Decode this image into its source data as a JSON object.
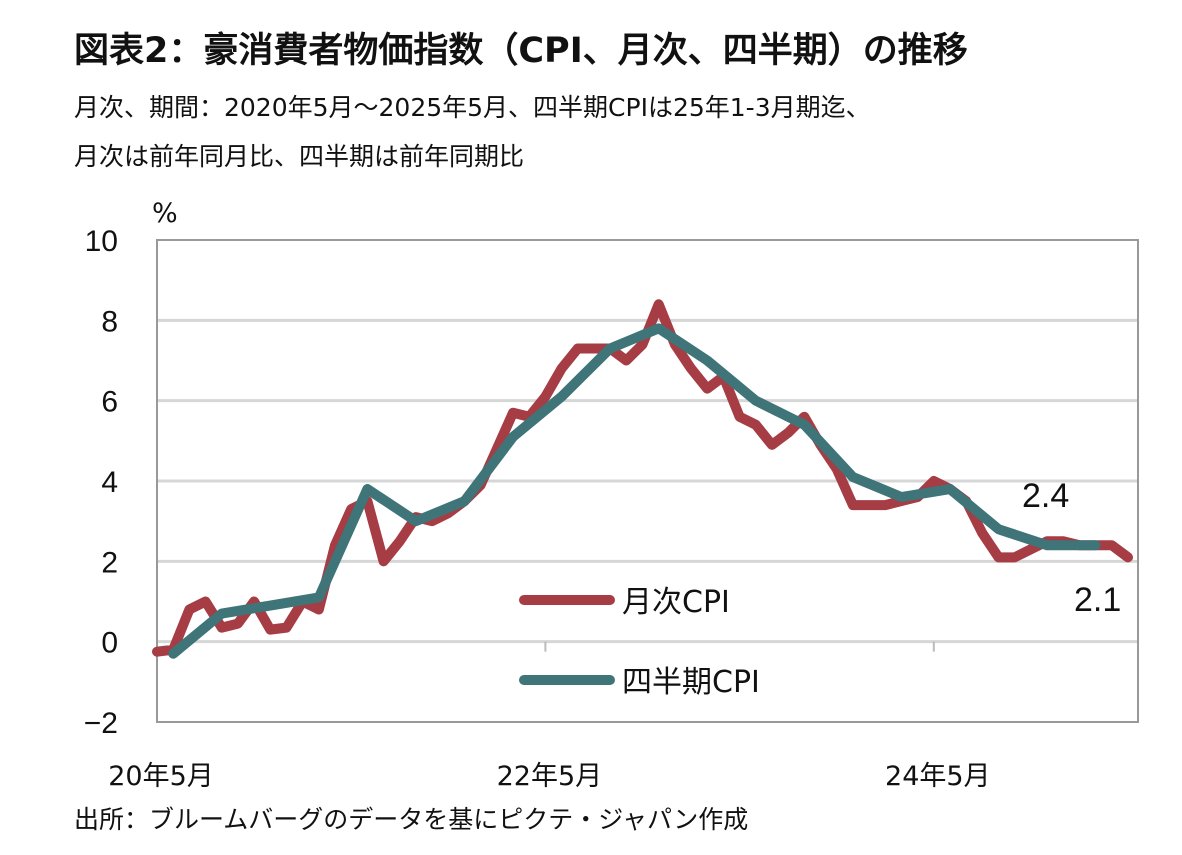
{
  "title": "図表2：豪消費者物価指数（CPI、月次、四半期）の推移",
  "subtitle_lines": [
    "月次、期間：2020年5月～2025年5月、四半期CPIは25年1-3月期迄、",
    "月次は前年同月比、四半期は前年同期比"
  ],
  "source": "出所：ブルームバーグのデータを基にピクテ・ジャパン作成",
  "chart_data": {
    "type": "line",
    "ylabel": "%",
    "ylim": [
      -2,
      10
    ],
    "yticks": [
      -2,
      0,
      2,
      4,
      6,
      8,
      10
    ],
    "ytick_labels": [
      "−2",
      "0",
      "2",
      "4",
      "6",
      "8",
      "10"
    ],
    "x_range": [
      "2020-05",
      "2025-05"
    ],
    "xtick_labels": [
      {
        "date": "2020-05",
        "label": "20年5月"
      },
      {
        "date": "2022-05",
        "label": "22年5月"
      },
      {
        "date": "2024-05",
        "label": "24年5月"
      }
    ],
    "grid": true,
    "legend_placement": "bottom-center",
    "series": [
      {
        "name": "月次CPI",
        "color": "#a63c44",
        "start": "2020-05",
        "frequency": "monthly",
        "values": [
          -0.25,
          -0.2,
          0.8,
          1.0,
          0.35,
          0.45,
          1.0,
          0.3,
          0.35,
          1.0,
          0.8,
          2.4,
          3.3,
          3.5,
          2.0,
          2.5,
          3.1,
          3.0,
          3.2,
          3.5,
          3.9,
          4.8,
          5.7,
          5.6,
          6.1,
          6.8,
          7.3,
          7.3,
          7.3,
          7.0,
          7.4,
          8.4,
          7.4,
          6.8,
          6.3,
          6.6,
          5.6,
          5.4,
          4.9,
          5.2,
          5.6,
          4.9,
          4.3,
          3.4,
          3.4,
          3.4,
          3.5,
          3.6,
          4.0,
          3.8,
          3.5,
          2.7,
          2.1,
          2.1,
          2.3,
          2.5,
          2.5,
          2.4,
          2.4,
          2.4,
          2.1
        ]
      },
      {
        "name": "四半期CPI",
        "color": "#3f7479",
        "points": [
          [
            "2020-06",
            -0.3
          ],
          [
            "2020-09",
            0.7
          ],
          [
            "2020-12",
            0.9
          ],
          [
            "2021-03",
            1.1
          ],
          [
            "2021-06",
            3.8
          ],
          [
            "2021-09",
            3.0
          ],
          [
            "2021-12",
            3.5
          ],
          [
            "2022-03",
            5.1
          ],
          [
            "2022-06",
            6.1
          ],
          [
            "2022-09",
            7.3
          ],
          [
            "2022-12",
            7.8
          ],
          [
            "2023-03",
            7.0
          ],
          [
            "2023-06",
            6.0
          ],
          [
            "2023-09",
            5.4
          ],
          [
            "2023-12",
            4.1
          ],
          [
            "2024-03",
            3.6
          ],
          [
            "2024-06",
            3.8
          ],
          [
            "2024-09",
            2.8
          ],
          [
            "2024-12",
            2.4
          ],
          [
            "2025-03",
            2.4
          ]
        ]
      }
    ],
    "annotations": [
      {
        "text": "2.4",
        "series": "四半期CPI",
        "date": "2025-03"
      },
      {
        "text": "2.1",
        "series": "月次CPI",
        "date": "2025-05"
      }
    ]
  }
}
